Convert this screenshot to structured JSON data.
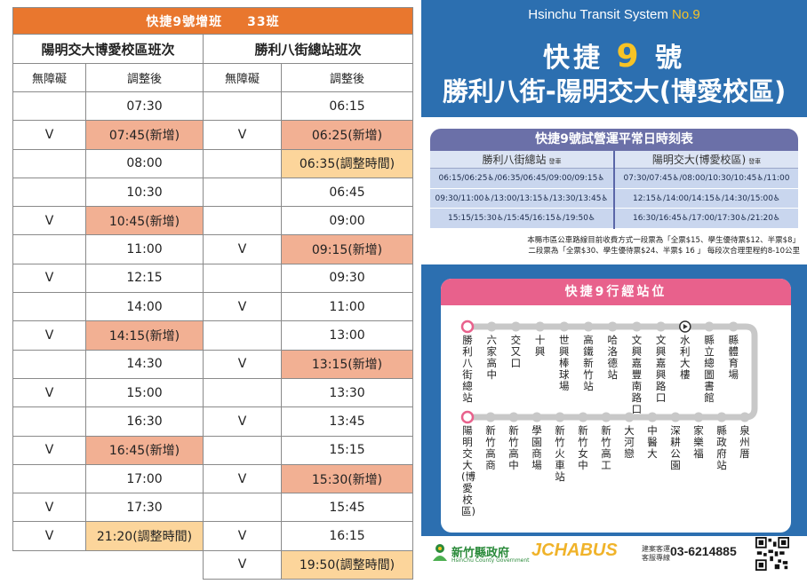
{
  "left_table": {
    "title": "快捷9號增班",
    "count": "33班",
    "dir_a": "陽明交大博愛校區班次",
    "dir_b": "勝利八街總站班次",
    "col_access": "無障礙",
    "col_time": "調整後",
    "rows": [
      {
        "a_acc": "",
        "a_time": "07:30",
        "a_hl": "",
        "b_acc": "",
        "b_time": "06:15",
        "b_hl": ""
      },
      {
        "a_acc": "V",
        "a_time": "07:45(新增)",
        "a_hl": "orange",
        "b_acc": "V",
        "b_time": "06:25(新增)",
        "b_hl": "orange"
      },
      {
        "a_acc": "",
        "a_time": "08:00",
        "a_hl": "",
        "b_acc": "",
        "b_time": "06:35(調整時間)",
        "b_hl": "yellow"
      },
      {
        "a_acc": "",
        "a_time": "10:30",
        "a_hl": "",
        "b_acc": "",
        "b_time": "06:45",
        "b_hl": ""
      },
      {
        "a_acc": "V",
        "a_time": "10:45(新增)",
        "a_hl": "orange",
        "b_acc": "",
        "b_time": "09:00",
        "b_hl": ""
      },
      {
        "a_acc": "",
        "a_time": "11:00",
        "a_hl": "",
        "b_acc": "V",
        "b_time": "09:15(新增)",
        "b_hl": "orange"
      },
      {
        "a_acc": "V",
        "a_time": "12:15",
        "a_hl": "",
        "b_acc": "",
        "b_time": "09:30",
        "b_hl": ""
      },
      {
        "a_acc": "",
        "a_time": "14:00",
        "a_hl": "",
        "b_acc": "V",
        "b_time": "11:00",
        "b_hl": ""
      },
      {
        "a_acc": "V",
        "a_time": "14:15(新增)",
        "a_hl": "orange",
        "b_acc": "",
        "b_time": "13:00",
        "b_hl": ""
      },
      {
        "a_acc": "",
        "a_time": "14:30",
        "a_hl": "",
        "b_acc": "V",
        "b_time": "13:15(新增)",
        "b_hl": "orange"
      },
      {
        "a_acc": "V",
        "a_time": "15:00",
        "a_hl": "",
        "b_acc": "",
        "b_time": "13:30",
        "b_hl": ""
      },
      {
        "a_acc": "",
        "a_time": "16:30",
        "a_hl": "",
        "b_acc": "V",
        "b_time": "13:45",
        "b_hl": ""
      },
      {
        "a_acc": "V",
        "a_time": "16:45(新增)",
        "a_hl": "orange",
        "b_acc": "",
        "b_time": "15:15",
        "b_hl": ""
      },
      {
        "a_acc": "",
        "a_time": "17:00",
        "a_hl": "",
        "b_acc": "V",
        "b_time": "15:30(新增)",
        "b_hl": "orange"
      },
      {
        "a_acc": "V",
        "a_time": "17:30",
        "a_hl": "",
        "b_acc": "",
        "b_time": "15:45",
        "b_hl": ""
      },
      {
        "a_acc": "V",
        "a_time": "21:20(調整時間)",
        "a_hl": "yellow",
        "b_acc": "V",
        "b_time": "16:15",
        "b_hl": ""
      },
      {
        "a_acc": "",
        "a_time": "",
        "a_hl": "none",
        "b_acc": "V",
        "b_time": "19:50(調整時間)",
        "b_hl": "yellow"
      }
    ]
  },
  "poster": {
    "system": "Hsinchu Transit System",
    "system_no": "No.9",
    "route_prefix": "快捷",
    "route_num": "9",
    "route_suffix": "號",
    "route_name": "勝利八街-陽明交大(博愛校區)",
    "schedule_title": "快捷9號試營運平常日時刻表",
    "col_a_title": "勝利八街總站",
    "col_b_title": "陽明交大(博愛校區)",
    "depart": "發車",
    "col_a_rows": [
      "06:15/06:25♿/06:35/06:45/09:00/09:15♿",
      "09:30/11:00♿/13:00/13:15♿/13:30/13:45♿",
      "15:15/15:30♿/15:45/16:15♿/19:50♿"
    ],
    "col_b_rows": [
      "07:30/07:45♿/08:00/10:30/10:45♿/11:00",
      "12:15♿/14:00/14:15♿/14:30/15:00♿",
      "16:30/16:45♿/17:00/17:30♿/21:20♿"
    ],
    "fare_line1": "本縣市區公車路線目前收費方式一段票為「全票$15、學生優待票$12、半票$8」",
    "fare_line2": "二段票為「全票$30、學生優待票$24、半票$ 16 」  每段次合理里程約8-10公里",
    "stops_title": "快捷9行經站位",
    "stops_top": [
      "勝利八街總站",
      "六家高中",
      "交又口",
      "十興",
      "世興棒球場",
      "高鐵新竹站",
      "哈洛德站",
      "文興嘉豐南路口",
      "文興嘉興路口",
      "水利大樓",
      "縣立總圖書館",
      "縣體育場"
    ],
    "stops_bottom": [
      "陽明交大(博愛校區)",
      "新竹高商",
      "新竹高中",
      "學園商場",
      "新竹火車站",
      "新竹女中",
      "新竹高工",
      "大河戀",
      "中醫大",
      "深耕公園",
      "家樂福",
      "縣政府站",
      "泉州厝"
    ],
    "gov_name": "新竹縣政府",
    "gov_en": "HsinChu County Government",
    "operator": "JCHABUS",
    "hotline_l1": "建案客運",
    "hotline_l2": "客服專線",
    "phone": "03-6214885",
    "colors": {
      "blue": "#2c6fb0",
      "orange": "#e9772e",
      "pink": "#e8618c",
      "purple": "#6b70a8",
      "yellow": "#f7c325"
    }
  }
}
